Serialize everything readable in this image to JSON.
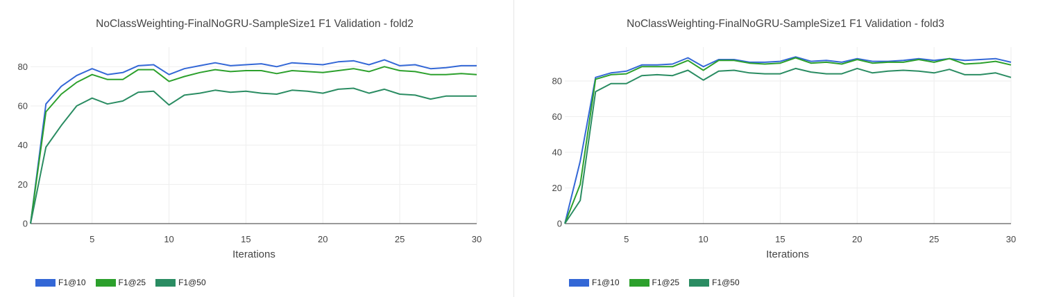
{
  "colors": {
    "f10": "#3367d6",
    "f25": "#2ca02c",
    "f50": "#2a8c62",
    "grid": "#eeeeee",
    "axis": "#333333"
  },
  "chart_data": [
    {
      "type": "line",
      "title": "NoClassWeighting-FinalNoGRU-SampleSize1 F1 Validation - fold2",
      "xlabel": "Iterations",
      "ylabel": "",
      "xlim": [
        1,
        30
      ],
      "ylim": [
        0,
        90
      ],
      "xticks": [
        5,
        10,
        15,
        20,
        25,
        30
      ],
      "yticks": [
        0,
        20,
        40,
        60,
        80
      ],
      "legend_position": "bottom-left",
      "grid": true,
      "x": [
        1,
        2,
        3,
        4,
        5,
        6,
        7,
        8,
        9,
        10,
        11,
        12,
        13,
        14,
        15,
        16,
        17,
        18,
        19,
        20,
        21,
        22,
        23,
        24,
        25,
        26,
        27,
        28,
        29,
        30
      ],
      "series": [
        {
          "name": "F1@10",
          "color_key": "f10",
          "values": [
            0,
            61,
            70,
            75.5,
            79,
            76,
            77,
            80.5,
            81,
            76,
            79,
            80.5,
            82,
            80.5,
            81,
            81.5,
            80,
            82,
            81.5,
            81,
            82.5,
            83,
            81,
            83.5,
            80.5,
            81,
            79,
            79.5,
            80.5,
            80.5
          ]
        },
        {
          "name": "F1@25",
          "color_key": "f25",
          "values": [
            0,
            57,
            66,
            72,
            76,
            73.5,
            73.5,
            78.5,
            78.5,
            72.5,
            75,
            77,
            78.5,
            77.5,
            78,
            78,
            76.5,
            78,
            77.5,
            77,
            78,
            79,
            77.5,
            80,
            78,
            77.5,
            76,
            76,
            76.5,
            76
          ]
        },
        {
          "name": "F1@50",
          "color_key": "f50",
          "values": [
            0,
            39,
            50,
            60,
            64,
            61,
            62.5,
            67,
            67.5,
            60.5,
            65.5,
            66.5,
            68,
            67,
            67.5,
            66.5,
            66,
            68,
            67.5,
            66.5,
            68.5,
            69,
            66.5,
            68.5,
            66,
            65.5,
            63.5,
            65,
            65,
            65
          ]
        }
      ]
    },
    {
      "type": "line",
      "title": "NoClassWeighting-FinalNoGRU-SampleSize1 F1 Validation - fold3",
      "xlabel": "Iterations",
      "ylabel": "",
      "xlim": [
        1,
        30
      ],
      "ylim": [
        0,
        99
      ],
      "xticks": [
        5,
        10,
        15,
        20,
        25,
        30
      ],
      "yticks": [
        0,
        20,
        40,
        60,
        80
      ],
      "legend_position": "bottom-left",
      "grid": true,
      "x": [
        1,
        2,
        3,
        4,
        5,
        6,
        7,
        8,
        9,
        10,
        11,
        12,
        13,
        14,
        15,
        16,
        17,
        18,
        19,
        20,
        21,
        22,
        23,
        24,
        25,
        26,
        27,
        28,
        29,
        30
      ],
      "series": [
        {
          "name": "F1@10",
          "color_key": "f10",
          "values": [
            0,
            35,
            82,
            84.5,
            85.5,
            89,
            89,
            89.5,
            93,
            88,
            92,
            92,
            90.5,
            90.5,
            91,
            93.5,
            91,
            91.5,
            90.5,
            92.5,
            91,
            91,
            91.5,
            92.5,
            91.5,
            92.5,
            91.5,
            92,
            92.5,
            90.5
          ]
        },
        {
          "name": "F1@25",
          "color_key": "f25",
          "values": [
            0,
            22,
            81,
            83.5,
            84,
            88,
            88,
            88,
            91.5,
            86,
            91.5,
            91.5,
            90,
            89.5,
            90,
            93,
            90,
            90.5,
            89.5,
            92,
            90,
            90.5,
            90.5,
            92,
            90.5,
            92.5,
            89.5,
            90,
            91,
            89
          ]
        },
        {
          "name": "F1@50",
          "color_key": "f50",
          "values": [
            0,
            13,
            74,
            78.5,
            78.5,
            83,
            83.5,
            83,
            86,
            80.5,
            85.5,
            86,
            84.5,
            84,
            84,
            87,
            85,
            84,
            84,
            87,
            84.5,
            85.5,
            86,
            85.5,
            84.5,
            86.5,
            83.5,
            83.5,
            84.5,
            82
          ]
        }
      ]
    }
  ]
}
